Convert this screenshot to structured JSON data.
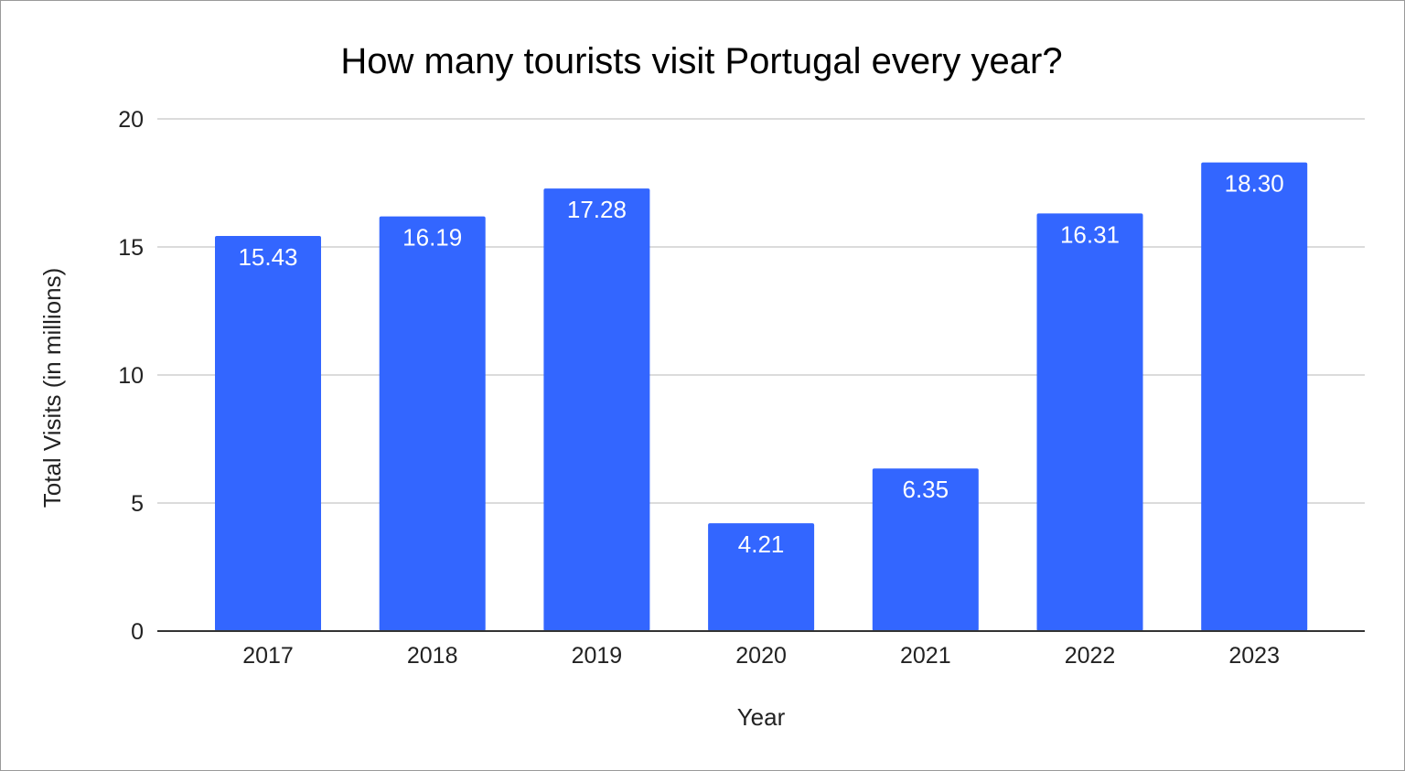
{
  "chart_data": {
    "type": "bar",
    "title": "How many tourists visit Portugal every year?",
    "xlabel": "Year",
    "ylabel": "Total Visits (in millions)",
    "categories": [
      "2017",
      "2018",
      "2019",
      "2020",
      "2021",
      "2022",
      "2023"
    ],
    "values": [
      15.43,
      16.19,
      17.28,
      4.21,
      6.35,
      16.31,
      18.3
    ],
    "data_labels": [
      "15.43",
      "16.19",
      "17.28",
      "4.21",
      "6.35",
      "16.31",
      "18.30"
    ],
    "ylim": [
      0,
      20
    ],
    "yticks": [
      0,
      5,
      10,
      15,
      20
    ],
    "grid": true,
    "legend": "none",
    "bar_color": "#3366ff"
  }
}
